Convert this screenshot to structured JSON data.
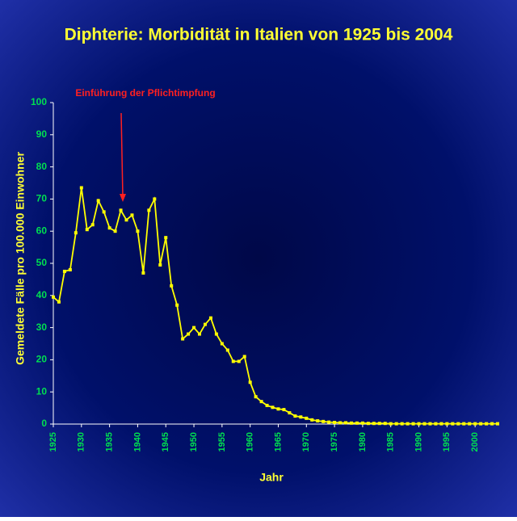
{
  "chart_data": {
    "type": "line",
    "title": "Diphterie: Morbidität in Italien von 1925 bis 2004",
    "annotation": "Einführung der Pflichtimpfung",
    "x_label": "Jahr",
    "y_label": "Gemeldete Fälle pro 100.000 Einwohner",
    "x": [
      1925,
      1926,
      1927,
      1928,
      1929,
      1930,
      1931,
      1932,
      1933,
      1934,
      1935,
      1936,
      1937,
      1938,
      1939,
      1940,
      1941,
      1942,
      1943,
      1944,
      1945,
      1946,
      1947,
      1948,
      1949,
      1950,
      1951,
      1952,
      1953,
      1954,
      1955,
      1956,
      1957,
      1958,
      1959,
      1960,
      1961,
      1962,
      1963,
      1964,
      1965,
      1966,
      1967,
      1968,
      1969,
      1970,
      1971,
      1972,
      1973,
      1974,
      1975,
      1976,
      1977,
      1978,
      1979,
      1980,
      1981,
      1982,
      1983,
      1984,
      1985,
      1986,
      1987,
      1988,
      1989,
      1990,
      1991,
      1992,
      1993,
      1994,
      1995,
      1996,
      1997,
      1998,
      1999,
      2000,
      2001,
      2002,
      2003,
      2004
    ],
    "series": [
      {
        "color": "#ffff00",
        "values": [
          39.5,
          38,
          47.5,
          48,
          59.5,
          73.5,
          60.5,
          62,
          69.5,
          66,
          61,
          60,
          66.5,
          63.5,
          65,
          60,
          47,
          66.5,
          70,
          49.5,
          58,
          43,
          37,
          26.5,
          28,
          30,
          28,
          31,
          33,
          28,
          25,
          23,
          19.5,
          19.5,
          21,
          13,
          8.5,
          7,
          5.8,
          5.2,
          4.7,
          4.5,
          3.5,
          2.5,
          2.2,
          1.8,
          1.3,
          1.0,
          0.8,
          0.6,
          0.5,
          0.4,
          0.4,
          0.3,
          0.3,
          0.3,
          0.2,
          0.2,
          0.2,
          0.2,
          0.1,
          0.1,
          0.1,
          0.1,
          0.1,
          0.1,
          0.1,
          0.1,
          0.1,
          0.1,
          0.1,
          0.1,
          0.1,
          0.1,
          0.1,
          0.1,
          0.1,
          0.1,
          0.1,
          0.1
        ]
      }
    ],
    "xlim": [
      1925,
      2004
    ],
    "xticks": [
      1925,
      1930,
      1935,
      1940,
      1945,
      1950,
      1955,
      1960,
      1965,
      1970,
      1975,
      1980,
      1985,
      1990,
      1995,
      2000
    ],
    "ylim": [
      0,
      100
    ],
    "yticks": [
      0,
      10,
      20,
      30,
      40,
      50,
      60,
      70,
      80,
      90,
      100
    ]
  }
}
